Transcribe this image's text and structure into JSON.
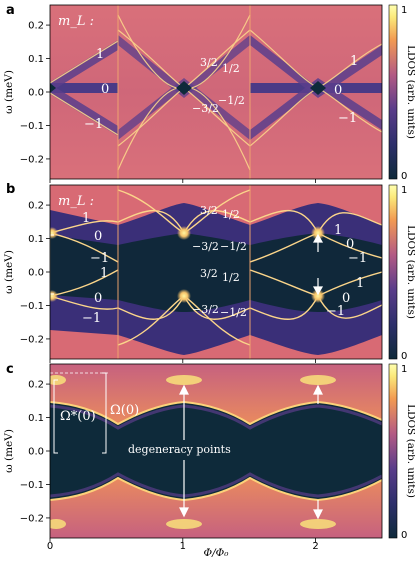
{
  "colors": {
    "background_low": "#0e2a3a",
    "mid": "#5a3d8a",
    "orange": "#f29a52",
    "peak": "#fbe97a",
    "colormap": [
      "#0e2a3a",
      "#2d2f6b",
      "#5a3d8a",
      "#b35a84",
      "#f29a52",
      "#fbe97a",
      "#ffffb0"
    ]
  },
  "x_axis": {
    "label": "Φ/Φ₀",
    "ticks": [
      "0",
      "1",
      "2"
    ],
    "tick_values": [
      0,
      1,
      2
    ],
    "range": [
      0,
      2.5
    ]
  },
  "chart_data": [
    {
      "panel": "a",
      "type": "heatmap",
      "ylabel": "ω (meV)",
      "ylim": [
        -0.26,
        0.26
      ],
      "yticks": [
        "0.2",
        "0.1",
        "0.0",
        "−0.1",
        "−0.2"
      ],
      "ytick_values": [
        0.2,
        0.1,
        0.0,
        -0.1,
        -0.2
      ],
      "colorbar": {
        "label": "LDOS (arb. units)",
        "ticks": [
          "1",
          "0"
        ]
      },
      "legend_title": "m_L :",
      "labels": [
        "1",
        "0",
        "−1",
        "3/2",
        "1/2",
        "−1/2",
        "−3/2",
        "1",
        "0",
        "−1"
      ],
      "lines": [
        {
          "name": "1",
          "slope": 0.12,
          "intercept": 0.09
        },
        {
          "name": "0",
          "slope": 0,
          "intercept": 0
        },
        {
          "name": "−1",
          "slope": -0.12,
          "intercept": -0.09
        }
      ]
    },
    {
      "panel": "b",
      "type": "heatmap",
      "ylabel": "ω (meV)",
      "ylim": [
        -0.26,
        0.26
      ],
      "yticks": [
        "0.2",
        "0.1",
        "0.0",
        "−0.1",
        "−0.2"
      ],
      "ytick_values": [
        0.2,
        0.1,
        0.0,
        -0.1,
        -0.2
      ],
      "colorbar": {
        "label": "LDOS (arb. units)",
        "ticks": [
          "1",
          "0"
        ]
      },
      "legend_title": "m_L :",
      "labels_upper": [
        "1",
        "0",
        "−1",
        "3/2",
        "1/2",
        "−3/2",
        "−1/2",
        "1",
        "0",
        "−1"
      ],
      "labels_lower": [
        "1",
        "0",
        "−1",
        "3/2",
        "1/2",
        "−3/2",
        "−1/2",
        "1",
        "0",
        "−1"
      ]
    },
    {
      "panel": "c",
      "type": "heatmap",
      "ylabel": "ω (meV)",
      "ylim": [
        -0.26,
        0.26
      ],
      "yticks": [
        "0.2",
        "0.1",
        "0.0",
        "−0.1",
        "−0.2"
      ],
      "ytick_values": [
        0.2,
        0.1,
        0.0,
        -0.1,
        -0.2
      ],
      "colorbar": {
        "label": "LDOS (arb. units)",
        "ticks": [
          "1",
          "0"
        ]
      },
      "gap_max": 0.235,
      "gap_min": 0.195,
      "omega_star_label": "Ω*(0)",
      "omega_label": "Ω(0)",
      "annotation": "degeneracy points"
    }
  ]
}
